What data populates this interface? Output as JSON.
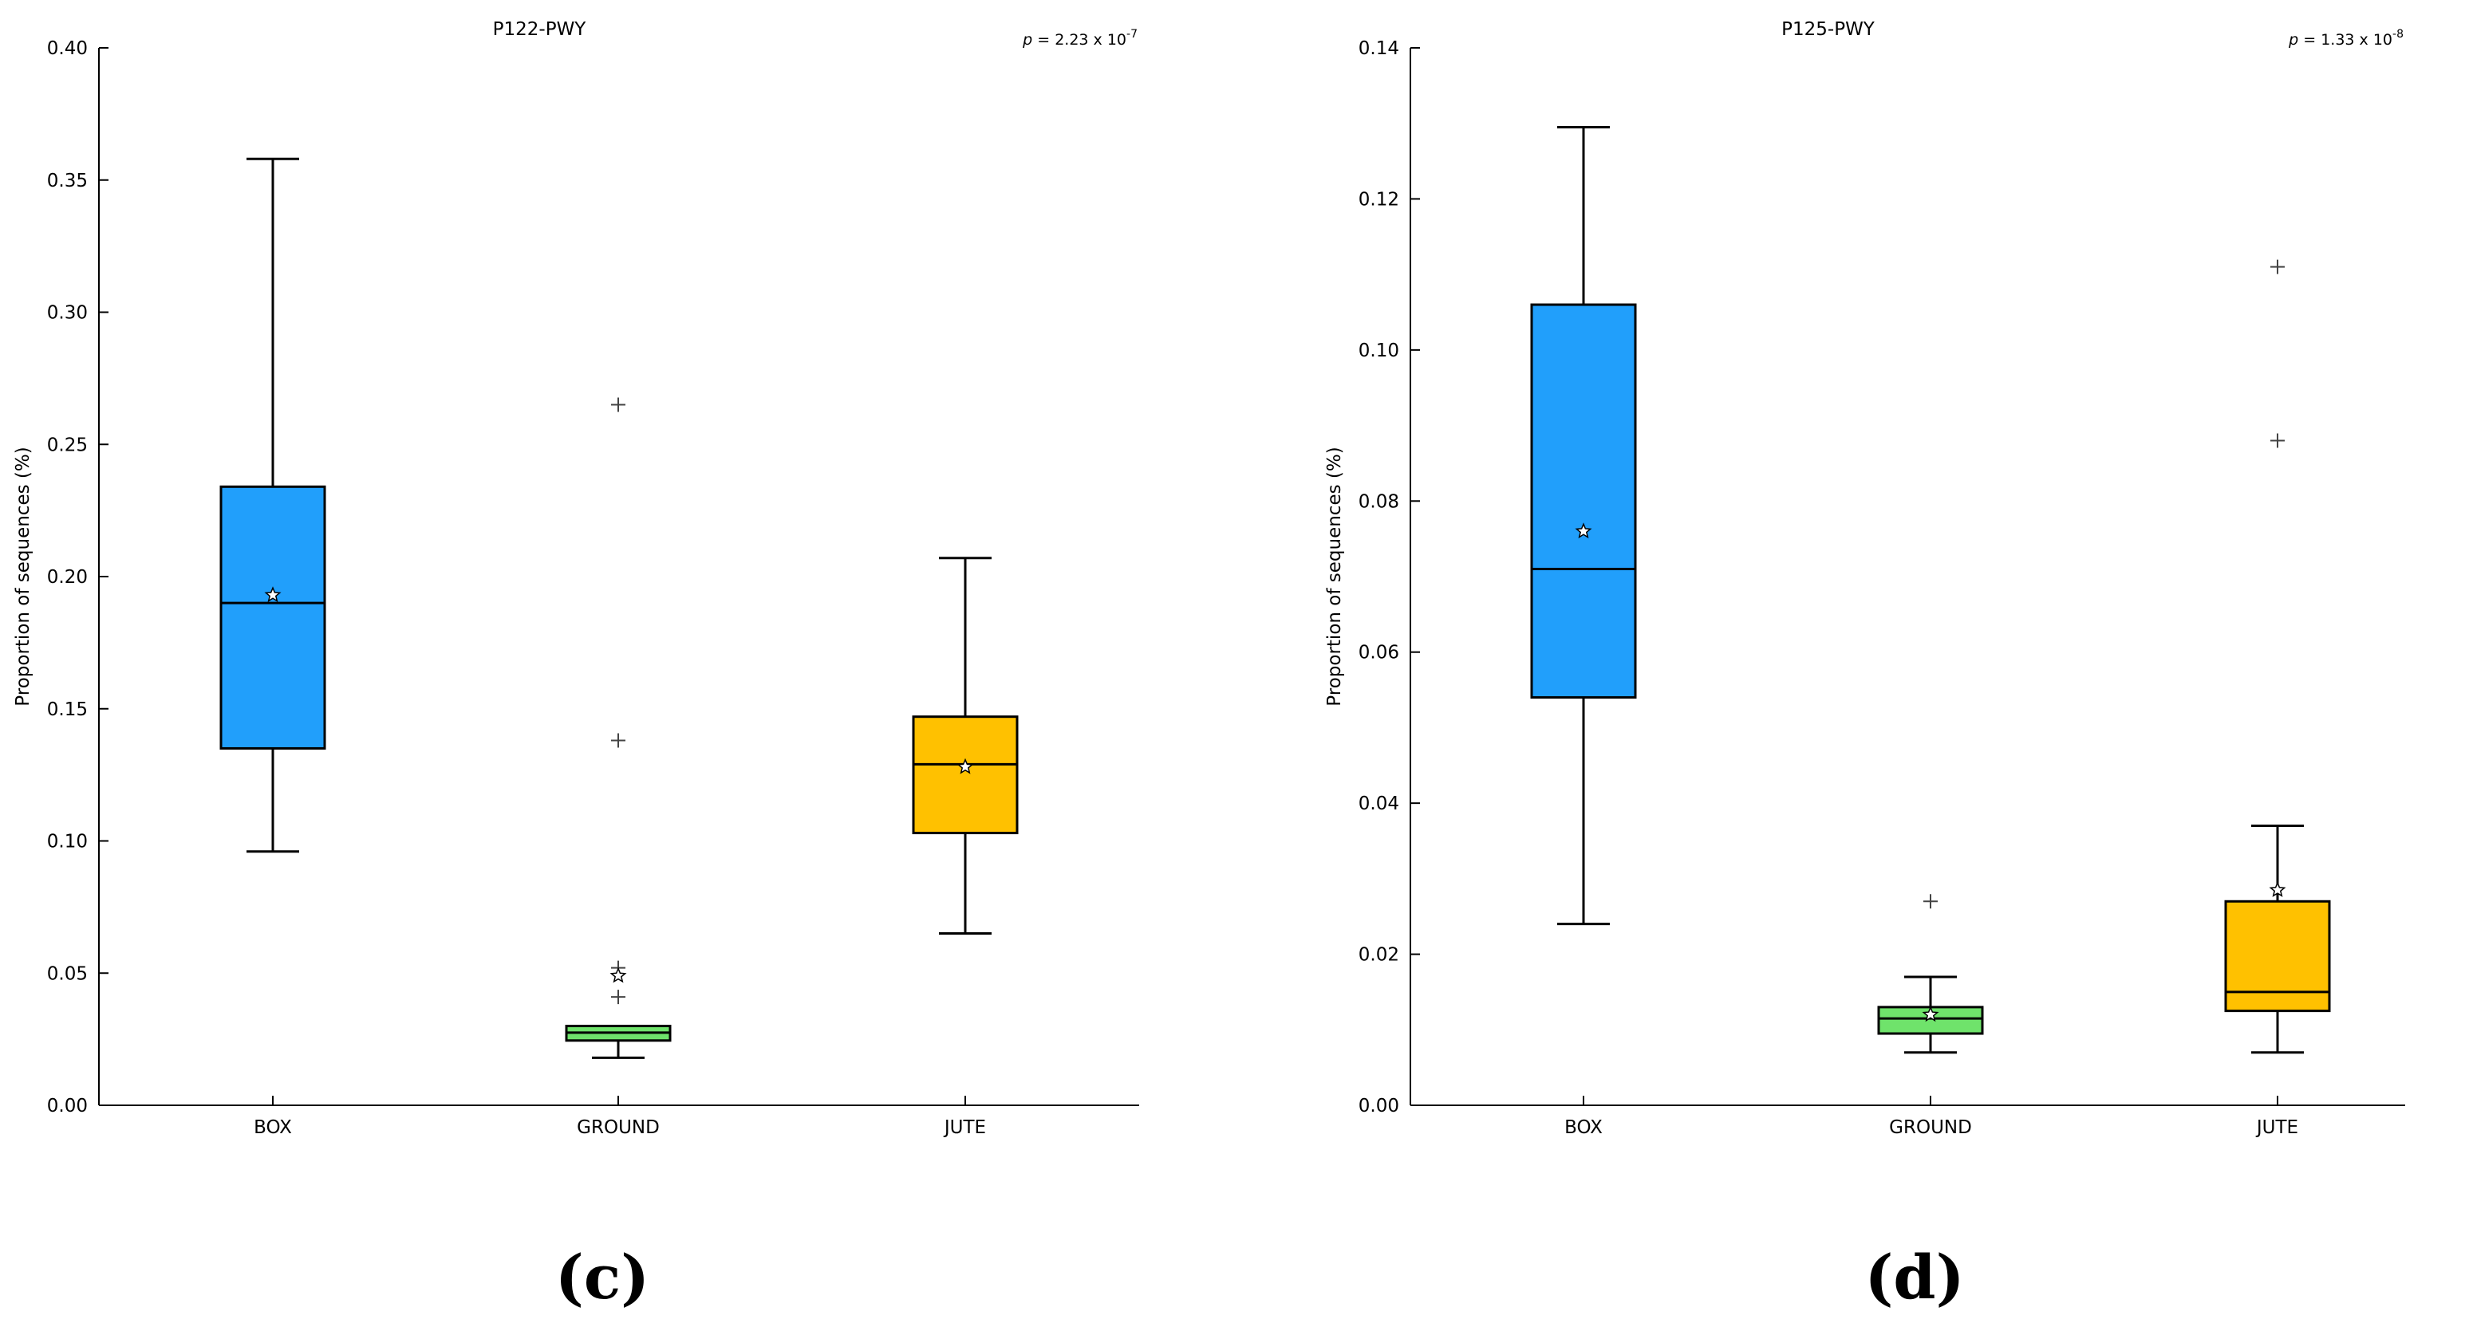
{
  "colors": {
    "BOX": "#219ffb",
    "GROUND": "#6fe36b",
    "JUTE": "#ffc100"
  },
  "chart_data": [
    {
      "type": "box",
      "panel_label": "(c)",
      "title": "P122-PWY",
      "p_value": {
        "prefix": "p",
        "text": " = 2.23 x 10",
        "exponent": "-7"
      },
      "xlabel": "",
      "ylabel": "Proportion of sequences (%)",
      "ylim": [
        0,
        0.4
      ],
      "yticks": [
        0.0,
        0.05,
        0.1,
        0.15,
        0.2,
        0.25,
        0.3,
        0.35,
        0.4
      ],
      "ytick_labels": [
        "0.00",
        "0.05",
        "0.10",
        "0.15",
        "0.20",
        "0.25",
        "0.30",
        "0.35",
        "0.40"
      ],
      "categories": [
        "BOX",
        "GROUND",
        "JUTE"
      ],
      "boxes": [
        {
          "name": "BOX",
          "whisker_low": 0.096,
          "q1": 0.135,
          "median": 0.19,
          "q3": 0.234,
          "whisker_high": 0.358,
          "mean": 0.193,
          "outliers": []
        },
        {
          "name": "GROUND",
          "whisker_low": 0.018,
          "q1": 0.0245,
          "median": 0.0275,
          "q3": 0.03,
          "whisker_high": 0.03,
          "mean": 0.049,
          "outliers": [
            0.265,
            0.138,
            0.052,
            0.041
          ]
        },
        {
          "name": "JUTE",
          "whisker_low": 0.065,
          "q1": 0.103,
          "median": 0.129,
          "q3": 0.147,
          "whisker_high": 0.207,
          "mean": 0.128,
          "outliers": []
        }
      ]
    },
    {
      "type": "box",
      "panel_label": "(d)",
      "title": "P125-PWY",
      "p_value": {
        "prefix": "p",
        "text": " = 1.33 x 10",
        "exponent": "-8"
      },
      "xlabel": "",
      "ylabel": "Proportion of sequences (%)",
      "ylim": [
        0,
        0.14
      ],
      "yticks": [
        0.0,
        0.02,
        0.04,
        0.06,
        0.08,
        0.1,
        0.12,
        0.14
      ],
      "ytick_labels": [
        "0.00",
        "0.02",
        "0.04",
        "0.06",
        "0.08",
        "0.10",
        "0.12",
        "0.14"
      ],
      "categories": [
        "BOX",
        "GROUND",
        "JUTE"
      ],
      "boxes": [
        {
          "name": "BOX",
          "whisker_low": 0.024,
          "q1": 0.054,
          "median": 0.071,
          "q3": 0.106,
          "whisker_high": 0.1295,
          "mean": 0.076,
          "outliers": []
        },
        {
          "name": "GROUND",
          "whisker_low": 0.007,
          "q1": 0.0095,
          "median": 0.0115,
          "q3": 0.013,
          "whisker_high": 0.017,
          "mean": 0.012,
          "outliers": [
            0.027
          ]
        },
        {
          "name": "JUTE",
          "whisker_low": 0.007,
          "q1": 0.0125,
          "median": 0.015,
          "q3": 0.027,
          "whisker_high": 0.037,
          "mean": 0.0285,
          "outliers": [
            0.111,
            0.088
          ]
        }
      ]
    }
  ]
}
